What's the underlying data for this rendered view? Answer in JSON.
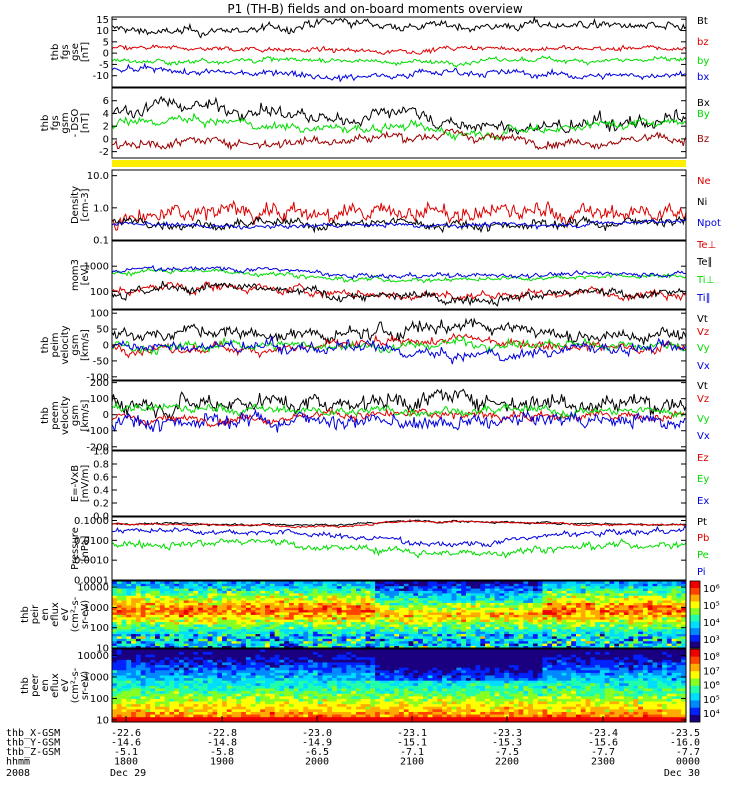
{
  "title": "P1 (TH-B) fields and on-board moments overview",
  "colors": {
    "black": "#000000",
    "red": "#dd0000",
    "green": "#00dd00",
    "blue": "#0000dd",
    "darkred": "#990000",
    "yellow": "#ffee00"
  },
  "chart_data": [
    {
      "type": "line",
      "ylabel": [
        "thb",
        "fgs",
        "gse",
        "[nT]"
      ],
      "ylim": [
        -15,
        16
      ],
      "yticks": [
        "15",
        "10",
        "5",
        "0",
        "-5",
        "-10"
      ],
      "series": [
        {
          "name": "Bt",
          "color": "#000000",
          "base": 11,
          "noise": 1.0,
          "values": [
            11,
            9,
            10,
            11,
            14,
            12,
            12,
            12,
            13,
            12,
            11
          ]
        },
        {
          "name": "bz",
          "color": "#dd0000",
          "base": 2,
          "noise": 0.6,
          "values": [
            2,
            2,
            2,
            2,
            1,
            1,
            2,
            2,
            2,
            2,
            2
          ]
        },
        {
          "name": "by",
          "color": "#00dd00",
          "base": -3,
          "noise": 0.6,
          "values": [
            -3,
            -4,
            -3,
            -3,
            -3,
            -4,
            -4,
            -3,
            -3,
            -3,
            -3
          ]
        },
        {
          "name": "bx",
          "color": "#0000dd",
          "base": -9,
          "noise": 0.8,
          "values": [
            -8,
            -8,
            -9,
            -8,
            -11,
            -9,
            -8,
            -9,
            -10,
            -10,
            -9
          ]
        }
      ]
    },
    {
      "type": "line",
      "ylabel": [
        "thb",
        "fgs",
        "gsm",
        "- DSO",
        "[nT]"
      ],
      "ylim": [
        -3,
        8
      ],
      "yticks": [
        "6",
        "4",
        "2",
        "0",
        "-2"
      ],
      "series": [
        {
          "name": "Bx",
          "color": "#000000",
          "noise": 0.6,
          "values": [
            4,
            5.5,
            5,
            4,
            2.5,
            5,
            2,
            1.5,
            2,
            2.5,
            3
          ]
        },
        {
          "name": "By",
          "color": "#00dd00",
          "noise": 0.4,
          "values": [
            2,
            3,
            2.5,
            2,
            1.5,
            2,
            1,
            1.5,
            2,
            2.5,
            3
          ]
        },
        {
          "name": "Bz",
          "color": "#990000",
          "noise": 0.4,
          "values": [
            -1,
            -0.5,
            -0.5,
            -0.5,
            0,
            0.5,
            0.5,
            0,
            -0.5,
            0,
            0
          ]
        }
      ]
    },
    {
      "type": "line",
      "ylabel": [
        "Density",
        "[cm-3]"
      ],
      "log": true,
      "ylim": [
        0.1,
        15
      ],
      "yticks": [
        "10.0",
        "1.0",
        "0.1"
      ],
      "series": [
        {
          "name": "Ne",
          "color": "#dd0000",
          "noise": 0.15,
          "values": [
            0.4,
            0.5,
            0.9,
            0.9,
            0.5,
            0.9,
            0.5,
            0.8,
            0.6,
            0.7,
            0.8
          ]
        },
        {
          "name": "Ni",
          "color": "#000000",
          "noise": 0.08,
          "values": [
            0.35,
            0.35,
            0.3,
            0.3,
            0.3,
            0.35,
            0.3,
            0.3,
            0.35,
            0.35,
            0.45
          ]
        },
        {
          "name": "Npot",
          "color": "#0000dd",
          "noise": 0.04,
          "values": [
            0.3,
            0.3,
            0.25,
            0.25,
            0.3,
            0.3,
            0.3,
            0.3,
            0.3,
            0.35,
            0.4
          ]
        }
      ]
    },
    {
      "type": "line",
      "ylabel": [
        "mom3",
        "[eV]"
      ],
      "log": true,
      "ylim": [
        20,
        10000
      ],
      "yticks": [
        "1000",
        "100"
      ],
      "series": [
        {
          "name": "Te⊥",
          "color": "#dd0000",
          "noise": 0.1,
          "values": [
            100,
            140,
            160,
            120,
            80,
            70,
            60,
            80,
            90,
            100,
            100
          ]
        },
        {
          "name": "Te∥",
          "color": "#000000",
          "noise": 0.1,
          "values": [
            80,
            120,
            140,
            100,
            70,
            60,
            50,
            70,
            80,
            90,
            90
          ]
        },
        {
          "name": "Ti⊥",
          "color": "#00dd00",
          "noise": 0.05,
          "values": [
            500,
            700,
            600,
            500,
            300,
            300,
            300,
            350,
            400,
            400,
            400
          ]
        },
        {
          "name": "Ti∥",
          "color": "#0000dd",
          "noise": 0.05,
          "values": [
            600,
            900,
            800,
            700,
            400,
            400,
            400,
            450,
            500,
            500,
            500
          ]
        }
      ]
    },
    {
      "type": "line",
      "ylabel": [
        "thb",
        "peim",
        "velocity",
        "gsm",
        "[km/s]"
      ],
      "ylim": [
        -110,
        110
      ],
      "yticks": [
        "100",
        "50",
        "0",
        "-50",
        "-100"
      ],
      "series": [
        {
          "name": "Vt",
          "color": "#000000",
          "noise": 12,
          "values": [
            30,
            40,
            40,
            30,
            30,
            40,
            70,
            60,
            30,
            30,
            30
          ]
        },
        {
          "name": "Vz",
          "color": "#dd0000",
          "noise": 8,
          "values": [
            -5,
            -20,
            -10,
            -10,
            0,
            0,
            20,
            10,
            0,
            -5,
            -5
          ]
        },
        {
          "name": "Vy",
          "color": "#00dd00",
          "noise": 8,
          "values": [
            0,
            -10,
            0,
            0,
            0,
            -10,
            10,
            0,
            0,
            0,
            0
          ]
        },
        {
          "name": "Vx",
          "color": "#0000dd",
          "noise": 10,
          "values": [
            -10,
            -10,
            -5,
            -10,
            -10,
            -20,
            -40,
            -30,
            -10,
            -10,
            -10
          ]
        }
      ]
    },
    {
      "type": "line",
      "ylabel": [
        "thb",
        "peem",
        "velocity",
        "gsm",
        "[km/s]"
      ],
      "ylim": [
        -220,
        210
      ],
      "yticks": [
        "200",
        "100",
        "0",
        "-100",
        "-200"
      ],
      "series": [
        {
          "name": "Vt",
          "color": "#000000",
          "noise": 30,
          "values": [
            90,
            80,
            90,
            80,
            80,
            100,
            100,
            90,
            80,
            80,
            80
          ]
        },
        {
          "name": "Vz",
          "color": "#dd0000",
          "noise": 15,
          "values": [
            -40,
            -30,
            -20,
            -10,
            0,
            0,
            0,
            0,
            -10,
            -10,
            -10
          ]
        },
        {
          "name": "Vy",
          "color": "#00dd00",
          "noise": 15,
          "values": [
            40,
            40,
            30,
            30,
            20,
            30,
            30,
            20,
            20,
            20,
            20
          ]
        },
        {
          "name": "Vx",
          "color": "#0000dd",
          "noise": 25,
          "values": [
            -40,
            -40,
            -30,
            -30,
            -30,
            -60,
            -60,
            -40,
            -30,
            -30,
            -30
          ]
        }
      ]
    },
    {
      "type": "line",
      "ylabel": [
        "E=-VxB",
        "[mV/m]"
      ],
      "ylim": [
        0,
        1
      ],
      "yticks": [
        "1.0",
        "0.8",
        "0.6",
        "0.4",
        "0.2",
        "0.0"
      ],
      "series": [
        {
          "name": "Ez",
          "color": "#dd0000",
          "values": []
        },
        {
          "name": "Ey",
          "color": "#00dd00",
          "values": []
        },
        {
          "name": "Ex",
          "color": "#0000dd",
          "values": []
        }
      ]
    },
    {
      "type": "line",
      "ylabel": [
        "Pressure",
        "[nPa]"
      ],
      "log": true,
      "ylim": [
        0.0001,
        0.15
      ],
      "yticks": [
        "0.1000",
        "0.0100",
        "0.0010",
        "0.0001"
      ],
      "series": [
        {
          "name": "Pt",
          "color": "#000000",
          "noise": 0.03,
          "values": [
            0.07,
            0.07,
            0.065,
            0.06,
            0.06,
            0.09,
            0.09,
            0.08,
            0.07,
            0.065,
            0.06
          ]
        },
        {
          "name": "Pb",
          "color": "#dd0000",
          "noise": 0.03,
          "values": [
            0.065,
            0.065,
            0.06,
            0.055,
            0.055,
            0.085,
            0.085,
            0.075,
            0.065,
            0.06,
            0.055
          ]
        },
        {
          "name": "Pe",
          "color": "#00dd00",
          "noise": 0.1,
          "values": [
            0.007,
            0.008,
            0.008,
            0.007,
            0.004,
            0.003,
            0.002,
            0.003,
            0.005,
            0.006,
            0.007
          ]
        },
        {
          "name": "Pi",
          "color": "#0000dd",
          "noise": 0.08,
          "values": [
            0.03,
            0.035,
            0.03,
            0.025,
            0.015,
            0.01,
            0.006,
            0.01,
            0.02,
            0.025,
            0.03
          ]
        }
      ]
    },
    {
      "type": "heatmap",
      "ylabel": [
        "thb",
        "peir",
        "en",
        "eflux",
        "eV",
        "(cm²-s-",
        "sr-eV)"
      ],
      "log": true,
      "ylim": [
        10,
        20000
      ],
      "yticks": [
        "10000",
        "1000",
        "100",
        "10"
      ],
      "colorbar_ticks": [
        "10⁶",
        "10⁵",
        "10⁴",
        "10³"
      ]
    },
    {
      "type": "heatmap",
      "ylabel": [
        "thb",
        "peer",
        "en",
        "eflux",
        "eV",
        "(cm²-s-",
        "sr-eV)"
      ],
      "log": true,
      "ylim": [
        8,
        20000
      ],
      "yticks": [
        "10000",
        "1000",
        "100",
        "10"
      ],
      "colorbar_ticks": [
        "10⁸",
        "10⁷",
        "10⁶",
        "10⁵",
        "10⁴"
      ]
    }
  ],
  "time_axis": {
    "rows": [
      {
        "label": "thb_X-GSM",
        "values": [
          "-22.6",
          "-22.8",
          "-23.0",
          "-23.1",
          "-23.3",
          "-23.4",
          "-23.5"
        ]
      },
      {
        "label": "thb_Y-GSM",
        "values": [
          "-14.6",
          "-14.8",
          "-14.9",
          "-15.1",
          "-15.3",
          "-15.6",
          "-16.0"
        ]
      },
      {
        "label": "thb_Z-GSM",
        "values": [
          "-5.1",
          "-5.8",
          "-6.5",
          "-7.1",
          "-7.5",
          "-7.7",
          "-7.7"
        ]
      },
      {
        "label": "hhmm",
        "values": [
          "1800",
          "1900",
          "2000",
          "2100",
          "2200",
          "2300",
          "0000"
        ]
      }
    ],
    "year": "2008",
    "date_start": "Dec 29",
    "date_end": "Dec 30"
  }
}
